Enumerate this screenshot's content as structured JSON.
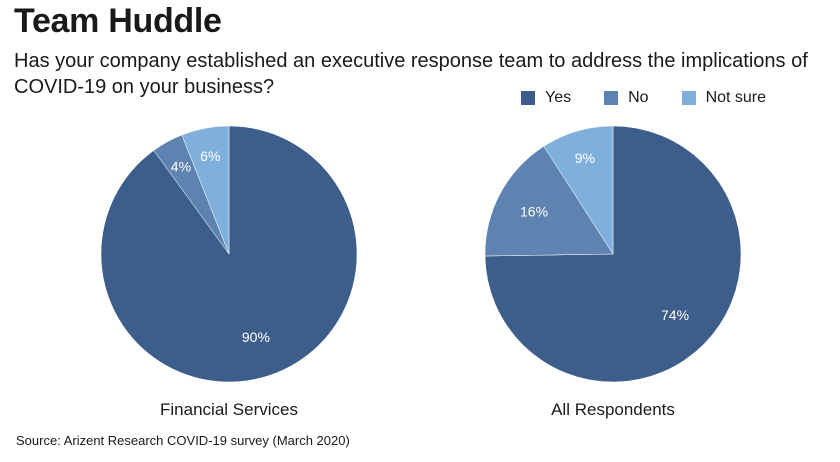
{
  "header": {
    "title": "Team Huddle",
    "subtitle": "Has your company established an executive response team to address the implications of COVID-19 on your business?"
  },
  "legend": {
    "items": [
      {
        "label": "Yes",
        "color": "#3d5d8a"
      },
      {
        "label": "No",
        "color": "#5e83b0"
      },
      {
        "label": "Not sure",
        "color": "#7fb0dc"
      }
    ]
  },
  "chart_data": [
    {
      "type": "pie",
      "caption": "Financial Services",
      "categories": [
        "Yes",
        "No",
        "Not sure"
      ],
      "values": [
        90,
        4,
        6
      ],
      "labels": [
        "90%",
        "4%",
        "6%"
      ],
      "colors": [
        "#3d5d8a",
        "#5e83b0",
        "#7fb0dc"
      ]
    },
    {
      "type": "pie",
      "caption": "All Respondents",
      "categories": [
        "Yes",
        "No",
        "Not sure"
      ],
      "values": [
        74,
        16,
        9
      ],
      "labels": [
        "74%",
        "16%",
        "9%"
      ],
      "colors": [
        "#3d5d8a",
        "#5e83b0",
        "#7fb0dc"
      ]
    }
  ],
  "footer": {
    "source": "Source: Arizent Research COVID-19 survey (March 2020)"
  }
}
